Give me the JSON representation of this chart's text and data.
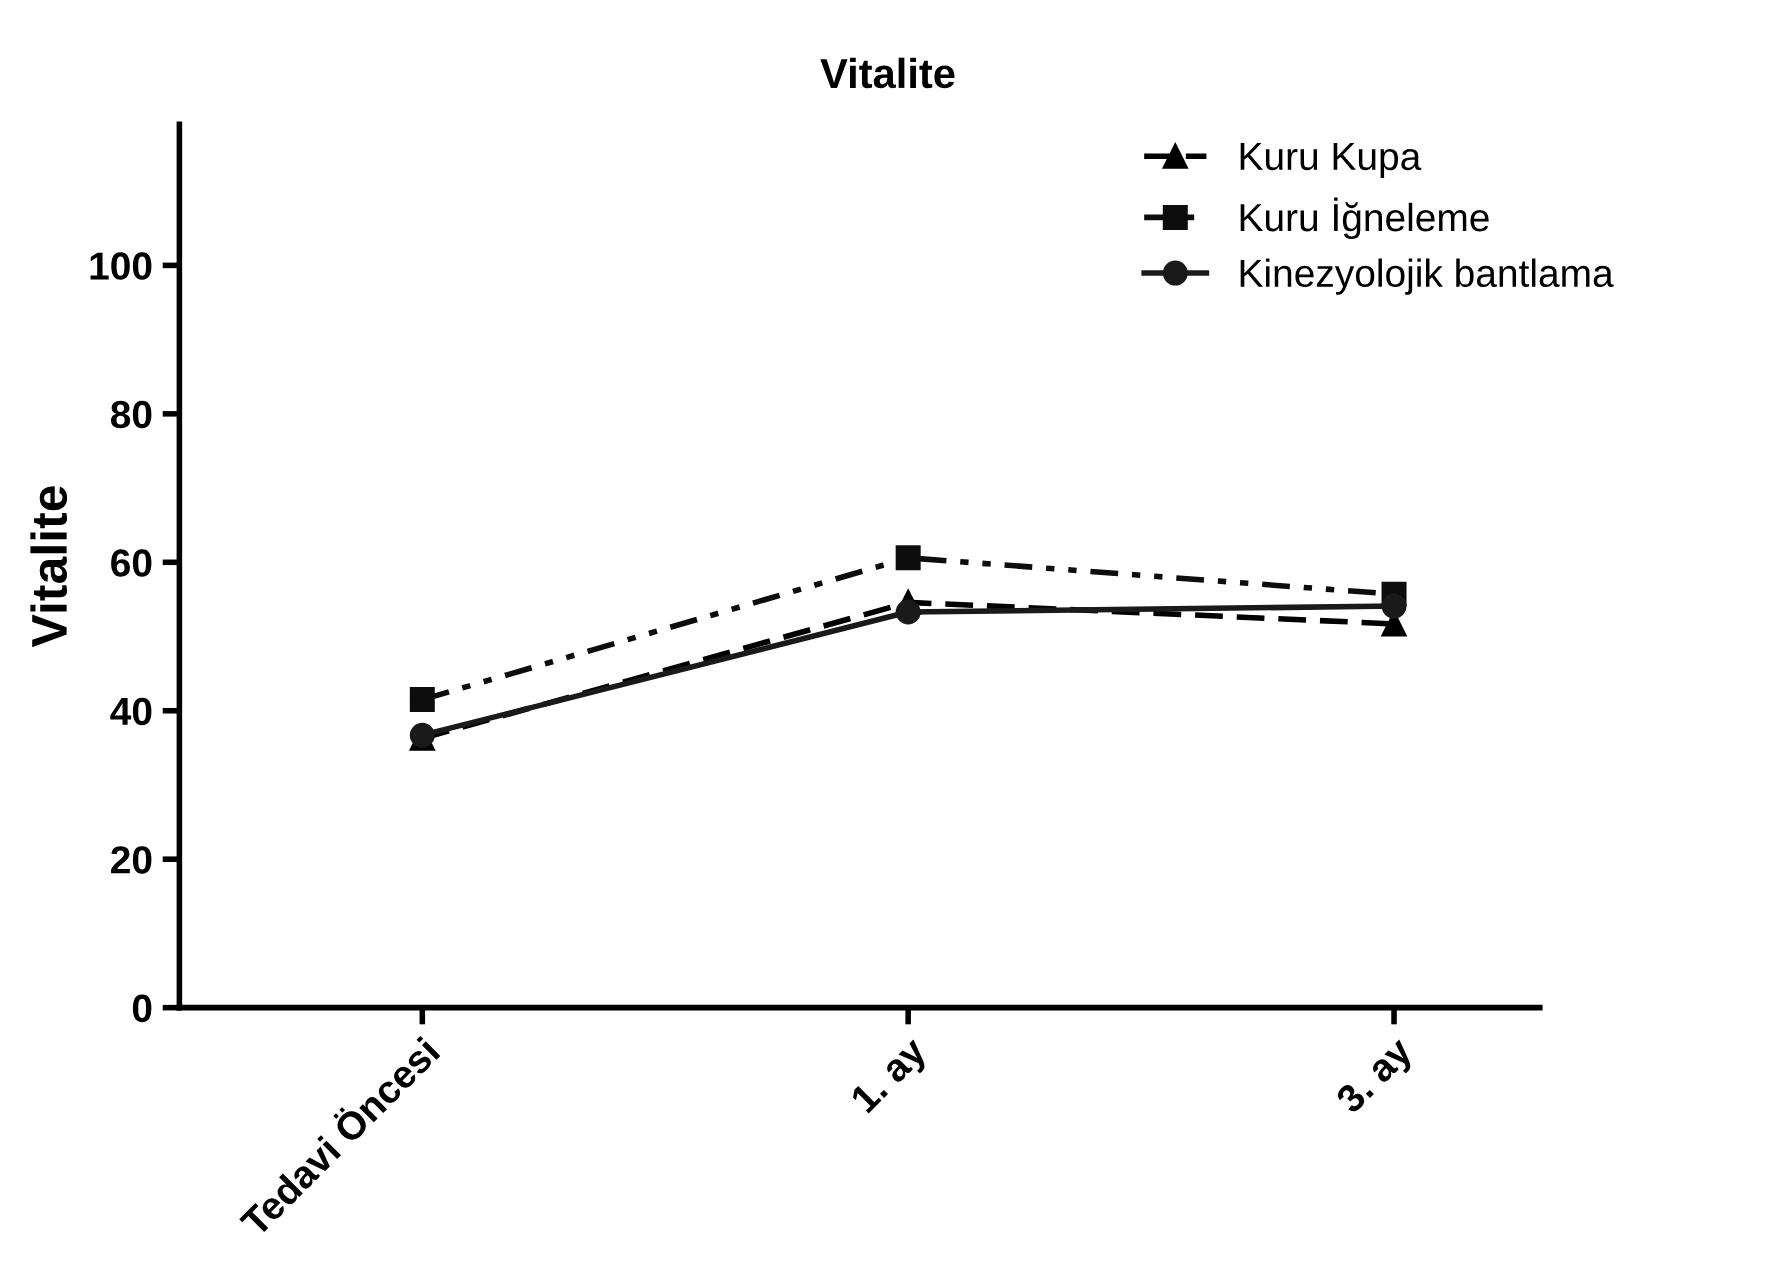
{
  "chart_data": {
    "type": "line",
    "title": "Vitalite",
    "ylabel": "Vitalite",
    "categories": [
      "Tedavi Öncesi",
      "1. ay",
      "3. ay"
    ],
    "series": [
      {
        "name": "Kuru Kupa",
        "color": "#000000",
        "marker": "triangle",
        "line_style": "dashed",
        "values": [
          36.3,
          54.6,
          51.7
        ]
      },
      {
        "name": "Kuru İğneleme",
        "color": "#0d0d0d",
        "marker": "square",
        "line_style": "dotted",
        "values": [
          41.5,
          60.6,
          55.7
        ]
      },
      {
        "name": "Kinezyolojik bantlama",
        "color": "#1a1a1a",
        "marker": "circle",
        "line_style": "solid",
        "values": [
          36.7,
          53.3,
          54.1
        ]
      }
    ],
    "ylim": [
      0,
      119
    ],
    "yticks": [
      0,
      20,
      40,
      60,
      80,
      100
    ],
    "grid": false,
    "legend": "top right"
  }
}
